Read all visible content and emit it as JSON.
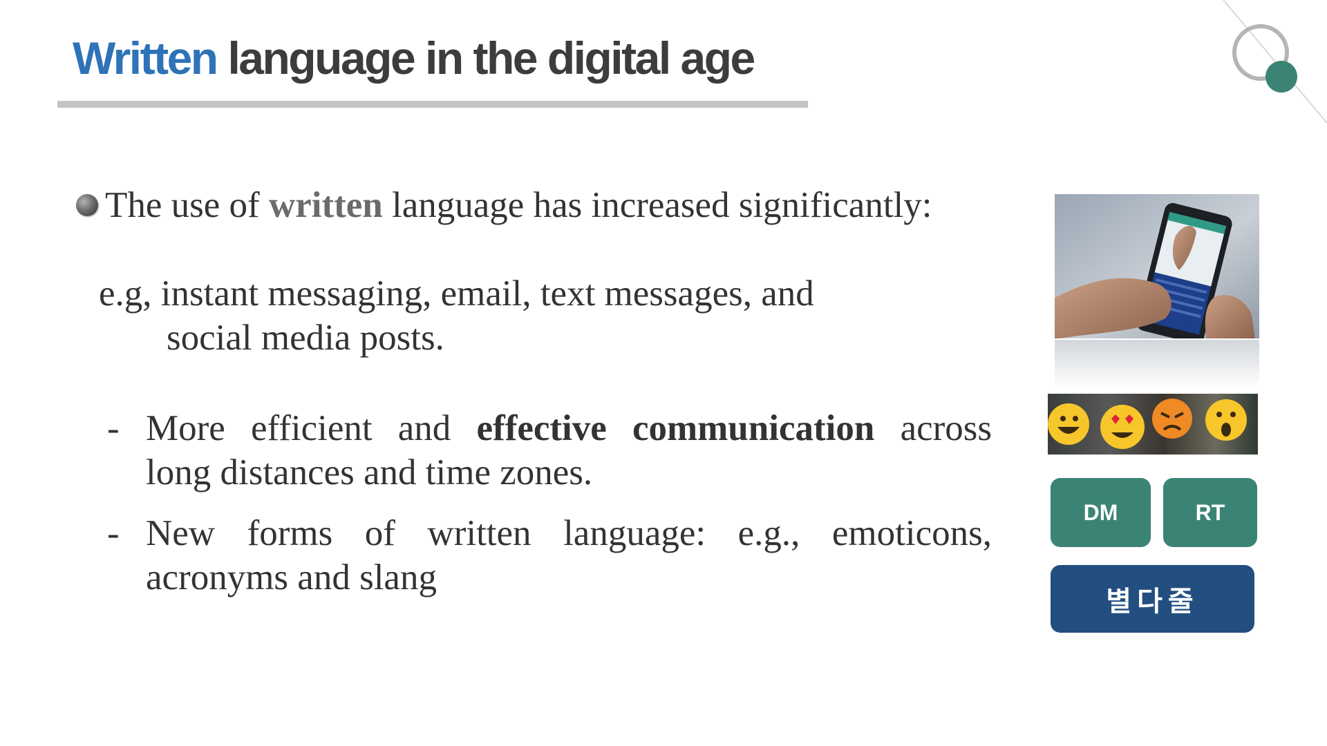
{
  "slide": {
    "title_accent": "Written",
    "title_rest": "language in the digital age",
    "bullet": {
      "prefix": "The use of",
      "strong": "written",
      "suffix": "language has increased significantly:"
    },
    "example": {
      "line1": "e.g, instant messaging, email, text messages, and",
      "line2": "social media posts."
    },
    "dash_items": [
      {
        "dash": "-",
        "line1_a": "More efficient and",
        "line1_bold": "effective communication",
        "line1_b": "across",
        "line2": "long distances and time zones."
      },
      {
        "dash": "-",
        "line1": "New forms of written language: e.g., emoticons,",
        "line2": "acronyms and slang"
      }
    ],
    "buttons": {
      "dm": "DM",
      "rt": "RT",
      "korean": "별다줄"
    }
  },
  "colors": {
    "title_accent": "#2e72b8",
    "title_text": "#3c3c3c",
    "body_text": "#333333",
    "dm_rt_button": "#3b8475",
    "korean_button": "#234f80"
  },
  "images": {
    "phone": "hands-typing-on-smartphone",
    "emoji": "people-holding-emoji-faces"
  }
}
